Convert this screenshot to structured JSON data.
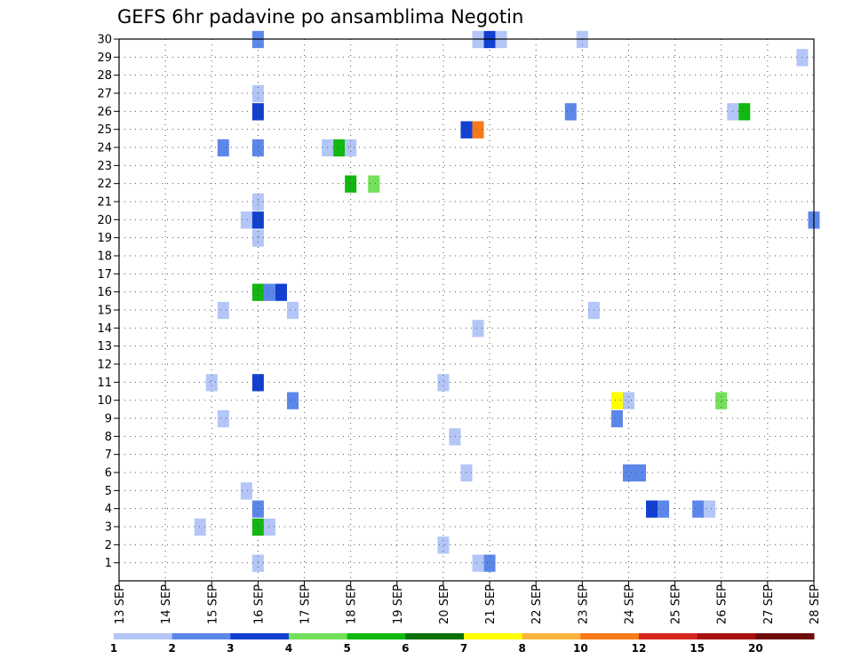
{
  "chart_data": {
    "type": "heatmap",
    "title": "GEFS 6hr padavine po ansamblima Negotin",
    "xlabel": "",
    "ylabel": "",
    "x_ticks": [
      "13 SEP",
      "14 SEP",
      "15 SEP",
      "16 SEP",
      "17 SEP",
      "18 SEP",
      "19 SEP",
      "20 SEP",
      "21 SEP",
      "22 SEP",
      "23 SEP",
      "24 SEP",
      "25 SEP",
      "26 SEP",
      "27 SEP",
      "28 SEP"
    ],
    "x_unit": "days from 13 SEP 00Z (6-hourly steps)",
    "xlim": [
      0,
      15
    ],
    "y_ticks": [
      1,
      2,
      3,
      4,
      5,
      6,
      7,
      8,
      9,
      10,
      11,
      12,
      13,
      14,
      15,
      16,
      17,
      18,
      19,
      20,
      21,
      22,
      23,
      24,
      25,
      26,
      27,
      28,
      29,
      30
    ],
    "ylim": [
      0,
      30
    ],
    "grid": true,
    "colorbar": {
      "labels": [
        "1",
        "2",
        "3",
        "4",
        "5",
        "6",
        "7",
        "8",
        "10",
        "12",
        "15",
        "20"
      ],
      "colors": [
        "#b3c6f7",
        "#5c87ea",
        "#1140d0",
        "#73e05a",
        "#10b810",
        "#087008",
        "#ffff00",
        "#fdb33a",
        "#f77a18",
        "#d7261e",
        "#a81010",
        "#6e0a0a"
      ],
      "bins": [
        1,
        2,
        3,
        4,
        5,
        6,
        7,
        8,
        10,
        12,
        15,
        20
      ]
    },
    "cells": [
      {
        "x": 3.0,
        "y": 30,
        "c": 2
      },
      {
        "x": 7.75,
        "y": 30,
        "c": 1
      },
      {
        "x": 8.0,
        "y": 30,
        "c": 3
      },
      {
        "x": 8.25,
        "y": 30,
        "c": 1
      },
      {
        "x": 10.0,
        "y": 30,
        "c": 1
      },
      {
        "x": 14.75,
        "y": 29,
        "c": 1
      },
      {
        "x": 3.0,
        "y": 27,
        "c": 1
      },
      {
        "x": 3.0,
        "y": 26,
        "c": 3
      },
      {
        "x": 9.75,
        "y": 26,
        "c": 2
      },
      {
        "x": 13.25,
        "y": 26,
        "c": 1
      },
      {
        "x": 13.5,
        "y": 26,
        "c": 5
      },
      {
        "x": 7.5,
        "y": 25,
        "c": 3
      },
      {
        "x": 7.75,
        "y": 25,
        "c": 9
      },
      {
        "x": 2.25,
        "y": 24,
        "c": 2
      },
      {
        "x": 3.0,
        "y": 24,
        "c": 2
      },
      {
        "x": 4.5,
        "y": 24,
        "c": 1
      },
      {
        "x": 4.75,
        "y": 24,
        "c": 5
      },
      {
        "x": 5.0,
        "y": 24,
        "c": 1
      },
      {
        "x": 5.0,
        "y": 22,
        "c": 5
      },
      {
        "x": 5.5,
        "y": 22,
        "c": 4
      },
      {
        "x": 3.0,
        "y": 21,
        "c": 1
      },
      {
        "x": 2.75,
        "y": 20,
        "c": 1
      },
      {
        "x": 3.0,
        "y": 20,
        "c": 3
      },
      {
        "x": 15.0,
        "y": 20,
        "c": 2
      },
      {
        "x": 3.0,
        "y": 19,
        "c": 1
      },
      {
        "x": 3.0,
        "y": 16,
        "c": 5
      },
      {
        "x": 3.25,
        "y": 16,
        "c": 2
      },
      {
        "x": 3.5,
        "y": 16,
        "c": 3
      },
      {
        "x": 2.25,
        "y": 15,
        "c": 1
      },
      {
        "x": 3.75,
        "y": 15,
        "c": 1
      },
      {
        "x": 10.25,
        "y": 15,
        "c": 1
      },
      {
        "x": 7.75,
        "y": 14,
        "c": 1
      },
      {
        "x": 2.0,
        "y": 11,
        "c": 1
      },
      {
        "x": 3.0,
        "y": 11,
        "c": 3
      },
      {
        "x": 7.0,
        "y": 11,
        "c": 1
      },
      {
        "x": 3.75,
        "y": 10,
        "c": 2
      },
      {
        "x": 10.75,
        "y": 10,
        "c": 7
      },
      {
        "x": 11.0,
        "y": 10,
        "c": 1
      },
      {
        "x": 13.0,
        "y": 10,
        "c": 4
      },
      {
        "x": 2.25,
        "y": 9,
        "c": 1
      },
      {
        "x": 10.75,
        "y": 9,
        "c": 2
      },
      {
        "x": 7.25,
        "y": 8,
        "c": 1
      },
      {
        "x": 7.5,
        "y": 6,
        "c": 1
      },
      {
        "x": 11.0,
        "y": 6,
        "c": 2
      },
      {
        "x": 11.25,
        "y": 6,
        "c": 2
      },
      {
        "x": 2.75,
        "y": 5,
        "c": 1
      },
      {
        "x": 3.0,
        "y": 4,
        "c": 2
      },
      {
        "x": 11.5,
        "y": 4,
        "c": 3
      },
      {
        "x": 11.75,
        "y": 4,
        "c": 2
      },
      {
        "x": 12.5,
        "y": 4,
        "c": 2
      },
      {
        "x": 12.75,
        "y": 4,
        "c": 1
      },
      {
        "x": 1.75,
        "y": 3,
        "c": 1
      },
      {
        "x": 3.0,
        "y": 3,
        "c": 5
      },
      {
        "x": 3.25,
        "y": 3,
        "c": 1
      },
      {
        "x": 7.0,
        "y": 2,
        "c": 1
      },
      {
        "x": 3.0,
        "y": 1,
        "c": 1
      },
      {
        "x": 7.75,
        "y": 1,
        "c": 1
      },
      {
        "x": 8.0,
        "y": 1,
        "c": 2
      }
    ]
  }
}
